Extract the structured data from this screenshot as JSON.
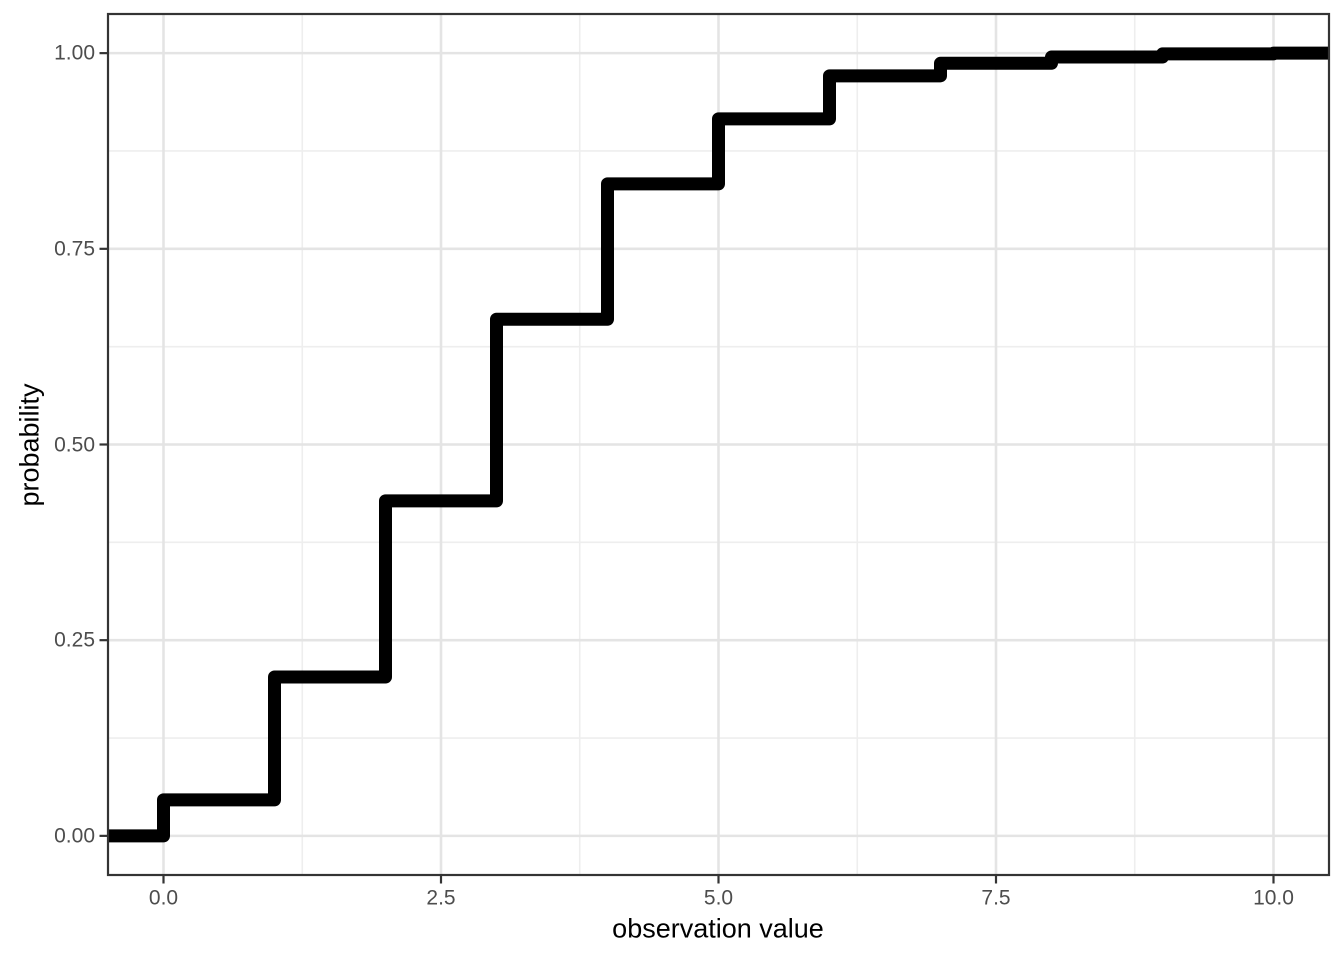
{
  "chart_data": {
    "type": "line",
    "subtype": "ecdf_step",
    "title": "",
    "xlabel": "observation value",
    "ylabel": "probability",
    "xlim": [
      -0.5,
      10.5
    ],
    "ylim": [
      -0.05,
      1.05
    ],
    "grid": "major and minor, light gray, theme_bw",
    "legend_position": "none",
    "x_ticks": {
      "values": [
        0,
        2.5,
        5,
        7.5,
        10
      ],
      "labels": [
        "0.0",
        "2.5",
        "5.0",
        "7.5",
        "10.0"
      ]
    },
    "y_ticks": {
      "values": [
        0,
        0.25,
        0.5,
        0.75,
        1
      ],
      "labels": [
        "0.00",
        "0.25",
        "0.50",
        "0.75",
        "1.00"
      ]
    },
    "x_minor_ticks": [
      1.25,
      3.75,
      6.25,
      8.75
    ],
    "y_minor_ticks": [
      0.125,
      0.375,
      0.625,
      0.875
    ],
    "baseline_probability": 0.0,
    "steps": [
      {
        "x": 0,
        "cumulative_probability": 0.046
      },
      {
        "x": 1,
        "cumulative_probability": 0.203
      },
      {
        "x": 2,
        "cumulative_probability": 0.428
      },
      {
        "x": 3,
        "cumulative_probability": 0.66
      },
      {
        "x": 4,
        "cumulative_probability": 0.833
      },
      {
        "x": 5,
        "cumulative_probability": 0.916
      },
      {
        "x": 6,
        "cumulative_probability": 0.971
      },
      {
        "x": 7,
        "cumulative_probability": 0.987
      },
      {
        "x": 8,
        "cumulative_probability": 0.995
      },
      {
        "x": 9,
        "cumulative_probability": 0.999
      },
      {
        "x": 10,
        "cumulative_probability": 1.0
      }
    ]
  },
  "colors": {
    "line": "#000000",
    "grid_major": "#e4e4e4",
    "grid_minor": "#eeeeee",
    "panel_border": "#343434",
    "axis_tick": "#343434",
    "tick_label": "#4d4d4d",
    "axis_title": "#000000",
    "background": "#ffffff"
  }
}
